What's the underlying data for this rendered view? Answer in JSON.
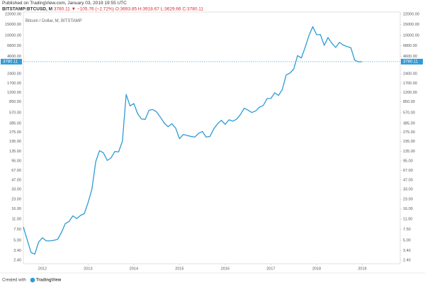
{
  "header": {
    "published": "Published on TradingView.com, January 03, 2019 19:55 UTC",
    "symbol": "BITSTAMP:BTCUSD, M",
    "last": "3780.11",
    "change": "▼ −105.76 (−2.72%)",
    "open": "O:3693.85",
    "high": "H:3918.67",
    "low": "L:3629.66",
    "close": "C:3780.11"
  },
  "footer": {
    "created": "Created with",
    "brand": "TradingView"
  },
  "chart_data": {
    "type": "line",
    "log_scale": true,
    "grid": false,
    "x": [
      2011.583,
      2011.667,
      2011.75,
      2011.833,
      2011.917,
      2012.0,
      2012.083,
      2012.167,
      2012.25,
      2012.333,
      2012.417,
      2012.5,
      2012.583,
      2012.667,
      2012.75,
      2012.833,
      2012.917,
      2013.0,
      2013.083,
      2013.167,
      2013.25,
      2013.333,
      2013.417,
      2013.5,
      2013.583,
      2013.667,
      2013.75,
      2013.833,
      2013.917,
      2014.0,
      2014.083,
      2014.167,
      2014.25,
      2014.333,
      2014.417,
      2014.5,
      2014.583,
      2014.667,
      2014.75,
      2014.833,
      2014.917,
      2015.0,
      2015.083,
      2015.167,
      2015.25,
      2015.333,
      2015.417,
      2015.5,
      2015.583,
      2015.667,
      2015.75,
      2015.833,
      2015.917,
      2016.0,
      2016.083,
      2016.167,
      2016.25,
      2016.333,
      2016.417,
      2016.5,
      2016.583,
      2016.667,
      2016.75,
      2016.833,
      2016.917,
      2017.0,
      2017.083,
      2017.167,
      2017.25,
      2017.333,
      2017.417,
      2017.5,
      2017.583,
      2017.667,
      2017.75,
      2017.833,
      2017.917,
      2018.0,
      2018.083,
      2018.167,
      2018.25,
      2018.333,
      2018.417,
      2018.5,
      2018.583,
      2018.667,
      2018.75,
      2018.833,
      2018.917,
      2019.0
    ],
    "series": [
      {
        "name": "Bitcoin / Dollar, M, BITSTAMP",
        "color": "#2e9bd6",
        "values": [
          8.2,
          5.1,
          3.2,
          3.0,
          4.7,
          5.5,
          4.9,
          4.9,
          5.0,
          5.2,
          6.7,
          9.3,
          10.1,
          12.4,
          11.2,
          12.6,
          13.5,
          20.4,
          33.4,
          93,
          139,
          129,
          97,
          106,
          135,
          133,
          198,
          1120,
          732,
          800,
          550,
          450,
          445,
          625,
          640,
          585,
          480,
          387,
          338,
          378,
          320,
          217,
          254,
          244,
          236,
          230,
          264,
          284,
          230,
          236,
          313,
          377,
          430,
          369,
          437,
          416,
          448,
          531,
          673,
          624,
          573,
          608,
          700,
          743,
          963,
          965,
          1190,
          1079,
          1348,
          2300,
          2480,
          2875,
          4735,
          4338,
          6451,
          9946,
          13860,
          10266,
          10326,
          6926,
          9245,
          7494,
          6391,
          7735,
          7011,
          6626,
          6341,
          4017,
          3742,
          3780.11
        ]
      }
    ],
    "last_value": 3780.11,
    "xlim": [
      2011.583,
      2019.83
    ],
    "xticks": [
      2012,
      2013,
      2014,
      2015,
      2016,
      2017,
      2018,
      2019
    ],
    "ylim": [
      2.1,
      23800
    ],
    "yticks": [
      {
        "value": 22000,
        "label": "22000.00"
      },
      {
        "value": 15000,
        "label": "15000.00"
      },
      {
        "value": 10000,
        "label": "10000.00"
      },
      {
        "value": 6800,
        "label": "6800.00"
      },
      {
        "value": 4600,
        "label": "4600.00"
      },
      {
        "value": 2400,
        "label": "2400.00"
      },
      {
        "value": 1700,
        "label": "1700.00"
      },
      {
        "value": 1200,
        "label": "1200.00"
      },
      {
        "value": 850,
        "label": "850.00"
      },
      {
        "value": 570,
        "label": "570.00"
      },
      {
        "value": 385,
        "label": "385.00"
      },
      {
        "value": 275,
        "label": "275.00"
      },
      {
        "value": 195,
        "label": "195.00"
      },
      {
        "value": 135,
        "label": "135.00"
      },
      {
        "value": 95,
        "label": "95.00"
      },
      {
        "value": 67,
        "label": "67.00"
      },
      {
        "value": 47,
        "label": "47.00"
      },
      {
        "value": 33,
        "label": "33.00"
      },
      {
        "value": 23,
        "label": "23.00"
      },
      {
        "value": 16,
        "label": "16.00"
      },
      {
        "value": 11,
        "label": "11.00"
      },
      {
        "value": 7.5,
        "label": "7.50"
      },
      {
        "value": 5,
        "label": "5.00"
      },
      {
        "value": 3.4,
        "label": "3.40"
      },
      {
        "value": 2.4,
        "label": "2.40"
      }
    ]
  }
}
